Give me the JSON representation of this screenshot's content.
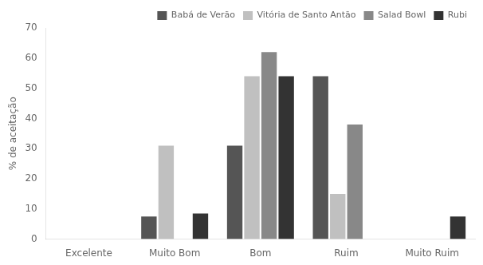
{
  "chart_data": {
    "type": "bar",
    "categories": [
      "Excelente",
      "Muito Bom",
      "Bom",
      "Ruim",
      "Muito Ruim"
    ],
    "series": [
      {
        "name": "Babá de Verão",
        "color": "#555555",
        "values": [
          0,
          7.5,
          31,
          54,
          0
        ]
      },
      {
        "name": "Vitória de Santo Antão",
        "color": "#c0c0c0",
        "values": [
          0,
          31,
          54,
          15,
          0
        ]
      },
      {
        "name": "Salad Bowl",
        "color": "#888888",
        "values": [
          0,
          0,
          62,
          38,
          0
        ]
      },
      {
        "name": "Rubi",
        "color": "#333333",
        "values": [
          0,
          8.5,
          54,
          0,
          7.5
        ]
      }
    ],
    "ylabel": "% de aceitação",
    "ylim": [
      0,
      70
    ],
    "yticks": [
      0,
      10,
      20,
      30,
      40,
      50,
      60,
      70
    ],
    "grid": false,
    "legend": "upper right"
  }
}
